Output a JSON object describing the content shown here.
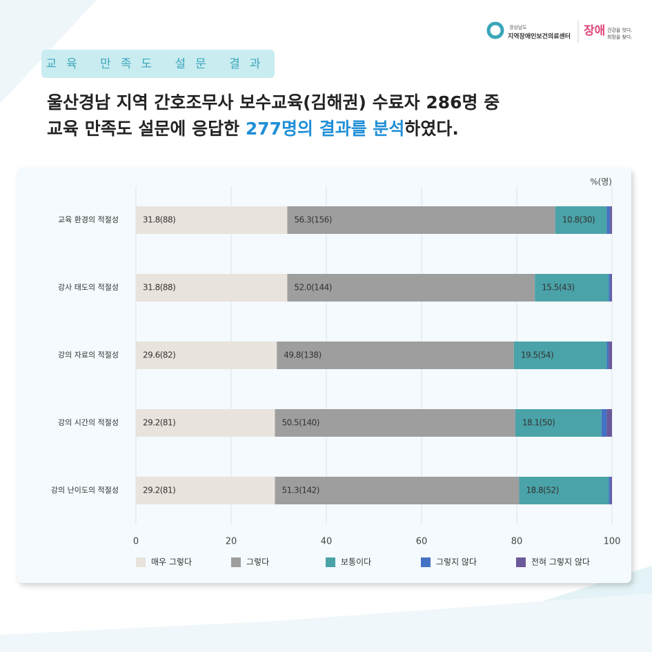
{
  "header": {
    "badge": "교육 만족도 설문 결과",
    "line1": "울산경남 지역 간호조무사 보수교육(김해권) 수료자 286명 중",
    "line2_start": "교육 만족도 설문에 응답한 ",
    "line2_highlight": "277명의 결과를 분석",
    "line2_end": "하였다.",
    "logo_region": "경상남도",
    "logo_center": "지역장애인보건의료센터",
    "logo_brand": "장애",
    "logo_slogan1": "건강을 잇다.",
    "logo_slogan2": "희망을 찾다."
  },
  "chart_data": {
    "type": "stacked_barh",
    "unit_label": "%(명)",
    "categories": [
      "교육 환경의 적절성",
      "강사 태도의 적절성",
      "강의 자료의 적절성",
      "강의 시간의 적절성",
      "강의 난이도의 적절성"
    ],
    "series": [
      {
        "name": "매우 그렇다",
        "color": "#e8e3dc",
        "values": [
          31.8,
          31.8,
          29.6,
          29.2,
          29.2
        ],
        "value_labels": [
          "31.8(88)",
          "31.8(88)",
          "29.6(82)",
          "29.2(81)",
          "29.2(81)"
        ]
      },
      {
        "name": "그렇다",
        "color": "#9e9e9e",
        "values": [
          56.3,
          52.0,
          49.8,
          50.5,
          51.3
        ],
        "value_labels": [
          "56.3(156)",
          "52.0(144)",
          "49.8(138)",
          "50.5(140)",
          "51.3(142)"
        ]
      },
      {
        "name": "보통이다",
        "color": "#4aa3a8",
        "values": [
          10.8,
          15.5,
          19.5,
          18.1,
          18.8
        ],
        "value_labels": [
          "10.8(30)",
          "15.5(43)",
          "19.5(54)",
          "18.1(50)",
          "18.8(52)"
        ]
      },
      {
        "name": "그렇지 않다",
        "color": "#4472c4",
        "values": [
          0.7,
          0.4,
          0.4,
          1.1,
          0.4
        ],
        "value_labels": [
          null,
          null,
          null,
          null,
          null
        ]
      },
      {
        "name": "전혀 그렇지 않다",
        "color": "#6a5a9a",
        "values": [
          0.4,
          0.3,
          0.7,
          1.1,
          0.3
        ],
        "value_labels": [
          null,
          null,
          null,
          null,
          null
        ]
      }
    ],
    "xlim": [
      0,
      100
    ],
    "xticks": [
      0,
      20,
      40,
      60,
      80,
      100
    ],
    "grid": true
  }
}
